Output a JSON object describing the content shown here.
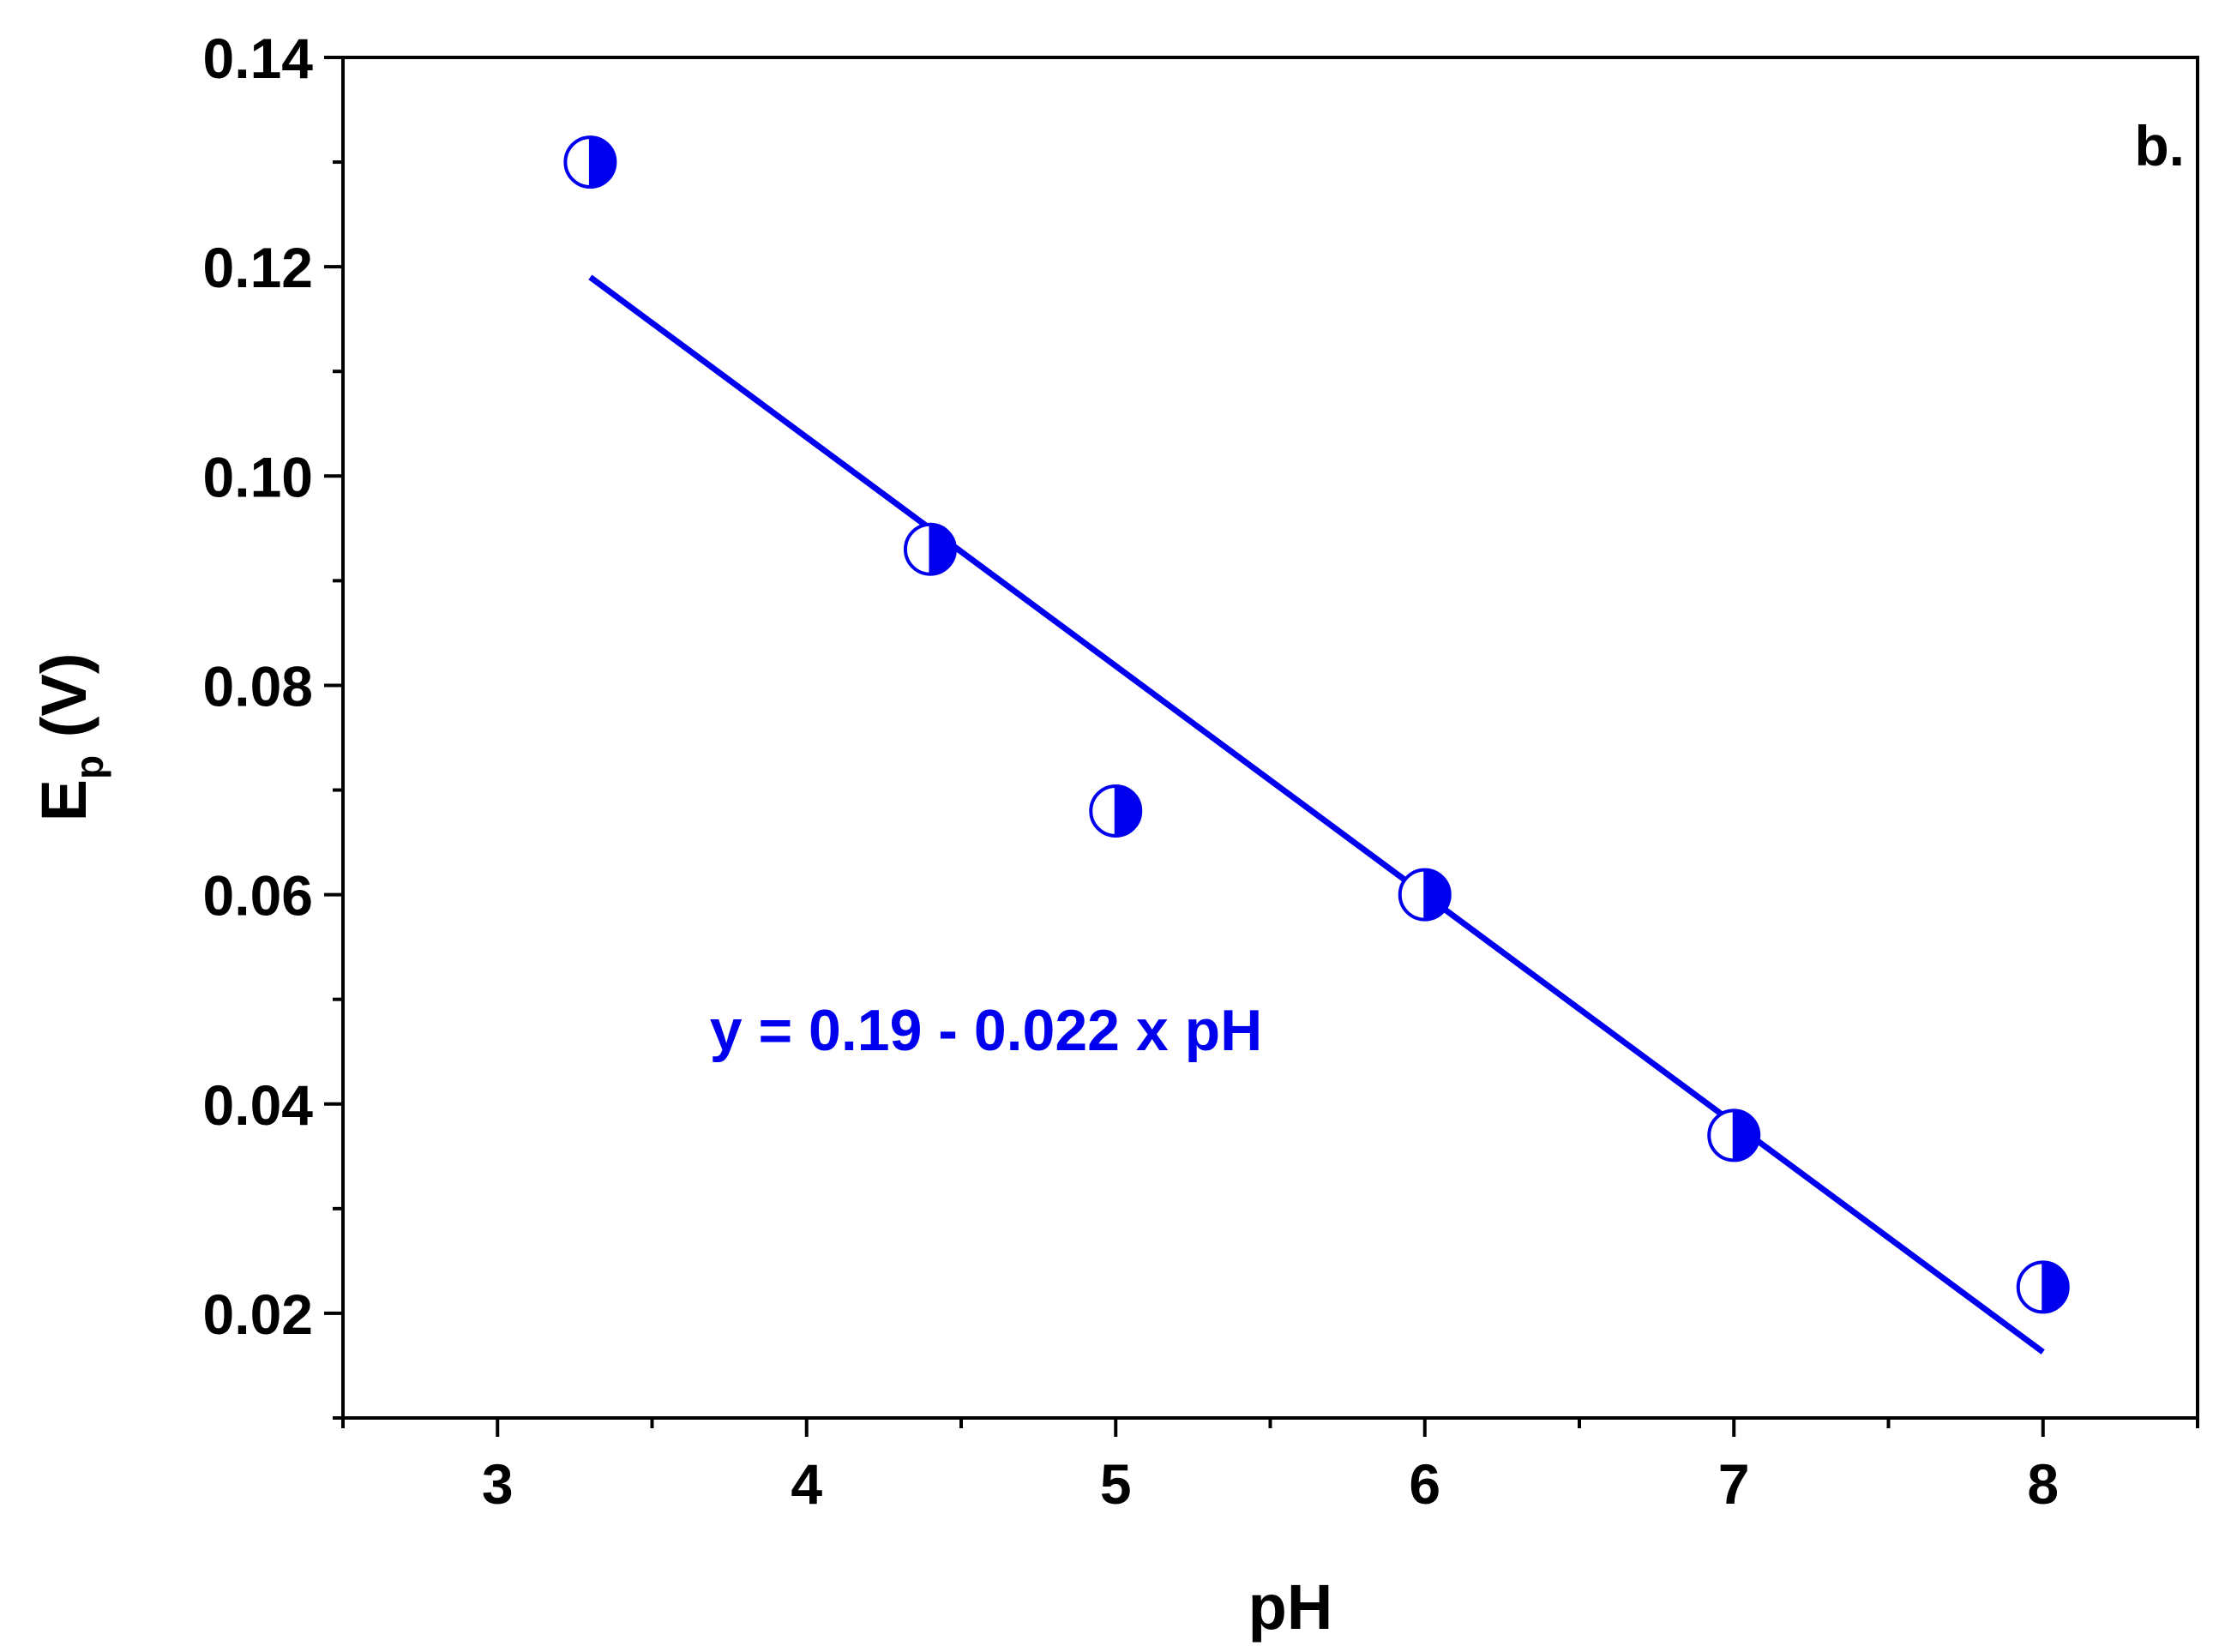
{
  "chart_data": {
    "type": "scatter",
    "title": "",
    "panel_label": "b.",
    "xlabel": "pH",
    "ylabel": {
      "main": "E",
      "subscript": "p",
      "unit": " (V)"
    },
    "xlim": [
      2.5,
      8.5
    ],
    "ylim": [
      0.01,
      0.14
    ],
    "x_ticks": [
      3,
      4,
      5,
      6,
      7,
      8
    ],
    "x_tick_labels": [
      "3",
      "4",
      "5",
      "6",
      "7",
      "8"
    ],
    "y_ticks": [
      0.02,
      0.04,
      0.06,
      0.08,
      0.1,
      0.12,
      0.14
    ],
    "y_tick_labels": [
      "0.02",
      "0.04",
      "0.06",
      "0.08",
      "0.10",
      "0.12",
      "0.14"
    ],
    "grid": false,
    "series": [
      {
        "name": "Ep",
        "marker": "half-filled-circle",
        "x": [
          3.3,
          4.4,
          5.0,
          6.0,
          7.0,
          8.0
        ],
        "y": [
          0.13,
          0.093,
          0.068,
          0.06,
          0.037,
          0.0225
        ]
      }
    ],
    "fit": {
      "x": [
        3.3,
        8.0
      ],
      "y": [
        0.119,
        0.0163
      ],
      "equation": "y = 0.19 - 0.022 x pH"
    },
    "colors": {
      "series": "#0000ee",
      "axes": "#000000"
    }
  }
}
